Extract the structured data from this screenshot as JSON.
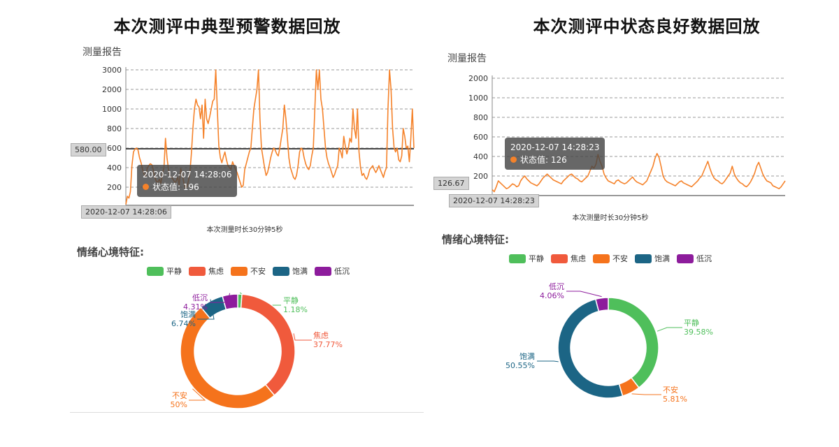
{
  "charts": [
    {
      "main_title": "本次测评中典型预警数据回放",
      "report_label": "测量报告",
      "duration": "本次测量时长30分钟5秒",
      "emotion_title": "情绪心境特征:",
      "tooltip": {
        "time": "2020-12-07 14:28:06",
        "label": "状态值: 196"
      },
      "x_pointer": "2020-12-07 14:28:06",
      "y_pointer": "580.00",
      "legend": [
        "平静",
        "焦虑",
        "不安",
        "饱满",
        "低沉"
      ],
      "colors": {
        "平静": "#4fbf5b",
        "焦虑": "#f05a3c",
        "不安": "#f5731c",
        "饱满": "#1c6585",
        "低沉": "#8d1c9c",
        "line": "#f5822a"
      },
      "pie_labels": [
        {
          "name": "平静",
          "value": "1.18%"
        },
        {
          "name": "焦虑",
          "value": "37.77%"
        },
        {
          "name": "不安",
          "value": "50%"
        },
        {
          "name": "饱满",
          "value": "6.74%"
        },
        {
          "name": "低沉",
          "value": "4.31%"
        }
      ]
    },
    {
      "main_title": "本次测评中状态良好数据回放",
      "report_label": "测量报告",
      "duration": "本次测量时长30分钟5秒",
      "emotion_title": "情绪心境特征:",
      "tooltip": {
        "time": "2020-12-07 14:28:23",
        "label": "状态值: 126"
      },
      "x_pointer": "2020-12-07 14:28:23",
      "y_pointer": "126.67",
      "legend": [
        "平静",
        "焦虑",
        "不安",
        "饱满",
        "低沉"
      ],
      "colors": {
        "平静": "#4fbf5b",
        "焦虑": "#f05a3c",
        "不安": "#f5731c",
        "饱满": "#1c6585",
        "低沉": "#8d1c9c",
        "line": "#f5822a"
      },
      "pie_labels": [
        {
          "name": "低沉",
          "value": "4.06%"
        },
        {
          "name": "平静",
          "value": "39.58%"
        },
        {
          "name": "饱满",
          "value": "50.55%"
        },
        {
          "name": "不安",
          "value": "5.81%"
        }
      ]
    }
  ],
  "chart_data": [
    {
      "type": "line",
      "yticks": [
        "200",
        "400",
        "600",
        "800",
        "1000",
        "2000",
        "3000"
      ],
      "ylim": [
        0,
        3000
      ],
      "grid": true,
      "series": [
        {
          "values": [
            10,
            100,
            80,
            150,
            420,
            560,
            590,
            600,
            580,
            500,
            450,
            380,
            330,
            310,
            390,
            420,
            440,
            430,
            380,
            300,
            260,
            250,
            280,
            240,
            340,
            400,
            700,
            500,
            380,
            310,
            300,
            280,
            250,
            260,
            300,
            220,
            390,
            330,
            250,
            190,
            200,
            260,
            350,
            540,
            800,
            1000,
            1500,
            1200,
            1100,
            900,
            1200,
            700,
            1500,
            900,
            850,
            920,
            1000,
            1400,
            1500,
            3000,
            1000,
            620,
            500,
            450,
            510,
            560,
            480,
            420,
            400,
            380,
            460,
            420,
            380,
            350,
            300,
            250,
            200,
            220,
            380,
            440,
            500,
            560,
            600,
            800,
            1000,
            1500,
            2000,
            3000,
            900,
            600,
            500,
            400,
            320,
            350,
            420,
            500,
            560,
            600,
            580,
            540,
            520,
            600,
            700,
            800,
            1200,
            900,
            700,
            500,
            400,
            350,
            300,
            280,
            320,
            420,
            560,
            600,
            580,
            500,
            440,
            400,
            380,
            420,
            520,
            600,
            1000,
            3000,
            2000,
            3000,
            1500,
            1000,
            800,
            600,
            500,
            440,
            400,
            350,
            300,
            330,
            380,
            420,
            600,
            560,
            500,
            720,
            620,
            540,
            600,
            700,
            660,
            1000,
            800,
            700,
            1000,
            560,
            400,
            320,
            340,
            300,
            280,
            320,
            380,
            400,
            420,
            380,
            350,
            380,
            420,
            380,
            340,
            300,
            360,
            400,
            1000,
            3000,
            2000,
            800,
            600,
            560,
            600,
            480,
            460,
            520,
            800,
            720,
            600,
            620,
            460,
            700,
            1000,
            600
          ]
        }
      ]
    },
    {
      "type": "line",
      "yticks": [
        "200",
        "400",
        "600",
        "800",
        "1000",
        "2000"
      ],
      "ylim": [
        0,
        2000
      ],
      "grid": true,
      "series": [
        {
          "values": [
            60,
            40,
            90,
            150,
            130,
            110,
            90,
            70,
            80,
            100,
            120,
            110,
            90,
            100,
            150,
            180,
            200,
            170,
            150,
            130,
            120,
            110,
            100,
            120,
            150,
            180,
            200,
            220,
            200,
            180,
            160,
            150,
            140,
            130,
            120,
            150,
            170,
            190,
            210,
            220,
            200,
            180,
            170,
            150,
            140,
            160,
            180,
            200,
            250,
            300,
            280,
            320,
            420,
            350,
            300,
            220,
            180,
            150,
            140,
            130,
            120,
            150,
            160,
            140,
            130,
            120,
            130,
            150,
            170,
            190,
            160,
            140,
            130,
            120,
            110,
            130,
            150,
            200,
            250,
            300,
            380,
            430,
            390,
            300,
            200,
            160,
            140,
            130,
            120,
            110,
            100,
            120,
            140,
            150,
            130,
            120,
            110,
            100,
            90,
            110,
            130,
            150,
            180,
            200,
            250,
            300,
            350,
            280,
            220,
            180,
            160,
            150,
            130,
            120,
            140,
            170,
            200,
            230,
            300,
            220,
            180,
            150,
            130,
            120,
            100,
            90,
            110,
            140,
            180,
            230,
            300,
            340,
            280,
            220,
            180,
            150,
            140,
            130,
            100,
            90,
            80,
            70,
            90,
            120,
            150
          ]
        }
      ]
    }
  ]
}
